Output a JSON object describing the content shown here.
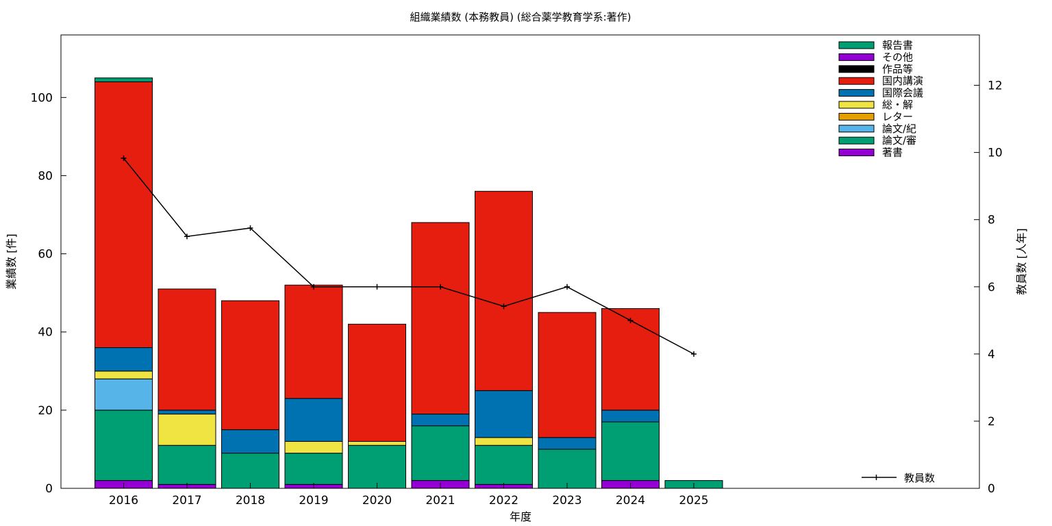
{
  "chart_data": {
    "type": "bar",
    "stacked": true,
    "title": "組織業績数 (本務教員) (総合薬学教育学系:著作)",
    "xlabel": "年度",
    "ylabel": "業績数 [件]",
    "y2label": "教員数 [人年]",
    "ylim": [
      0,
      116
    ],
    "y2lim": [
      0,
      13.5
    ],
    "yticks": [
      0,
      20,
      40,
      60,
      80,
      100
    ],
    "y2ticks": [
      0,
      2,
      4,
      6,
      8,
      10,
      12
    ],
    "grid": false,
    "legend_position": "top-right",
    "categories": [
      "2016",
      "2017",
      "2018",
      "2019",
      "2020",
      "2021",
      "2022",
      "2023",
      "2024",
      "2025"
    ],
    "series": [
      {
        "name": "著書",
        "color": "#9400d3",
        "values": [
          2,
          1,
          0,
          1,
          0,
          2,
          1,
          0,
          2,
          0
        ]
      },
      {
        "name": "論文/審",
        "color": "#009e73",
        "values": [
          18,
          10,
          9,
          8,
          11,
          14,
          10,
          10,
          15,
          2
        ]
      },
      {
        "name": "論文/紀",
        "color": "#56b4e9",
        "values": [
          8,
          0,
          0,
          0,
          0,
          0,
          0,
          0,
          0,
          0
        ]
      },
      {
        "name": "レター",
        "color": "#e69f00",
        "values": [
          0,
          0,
          0,
          0,
          0,
          0,
          0,
          0,
          0,
          0
        ]
      },
      {
        "name": "総・解",
        "color": "#f0e442",
        "values": [
          2,
          8,
          0,
          3,
          1,
          0,
          2,
          0,
          0,
          0
        ]
      },
      {
        "name": "国際会議",
        "color": "#0072b2",
        "values": [
          6,
          1,
          6,
          11,
          0,
          3,
          12,
          3,
          3,
          0
        ]
      },
      {
        "name": "国内講演",
        "color": "#e51e10",
        "values": [
          68,
          31,
          33,
          29,
          30,
          49,
          51,
          32,
          26,
          0
        ]
      },
      {
        "name": "作品等",
        "color": "#000000",
        "values": [
          0,
          0,
          0,
          0,
          0,
          0,
          0,
          0,
          0,
          0
        ]
      },
      {
        "name": "その他",
        "color": "#9400d3",
        "values": [
          0,
          0,
          0,
          0,
          0,
          0,
          0,
          0,
          0,
          0
        ]
      },
      {
        "name": "報告書",
        "color": "#009e73",
        "values": [
          1,
          0,
          0,
          0,
          0,
          0,
          0,
          0,
          0,
          0
        ]
      }
    ],
    "line_series": {
      "name": "教員数",
      "axis": "y2",
      "color": "#000000",
      "values": [
        9.83,
        7.5,
        7.75,
        6.0,
        6.0,
        6.0,
        5.42,
        6.0,
        5.0,
        4.0
      ]
    }
  }
}
